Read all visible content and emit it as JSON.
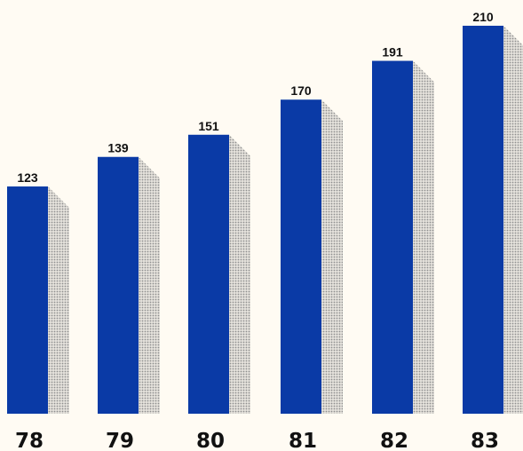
{
  "chart_data": {
    "type": "bar",
    "categories": [
      "78",
      "79",
      "80",
      "81",
      "82",
      "83"
    ],
    "values": [
      123,
      139,
      151,
      170,
      191,
      210
    ],
    "data_labels": [
      "123",
      "139",
      "151",
      "170",
      "191",
      "210"
    ],
    "title": "",
    "xlabel": "",
    "ylabel": "",
    "ylim": [
      0,
      210
    ],
    "grid": false,
    "legend": "none",
    "bar_color": "#0a3aa6",
    "shadow_color": "#b9b9b9"
  }
}
